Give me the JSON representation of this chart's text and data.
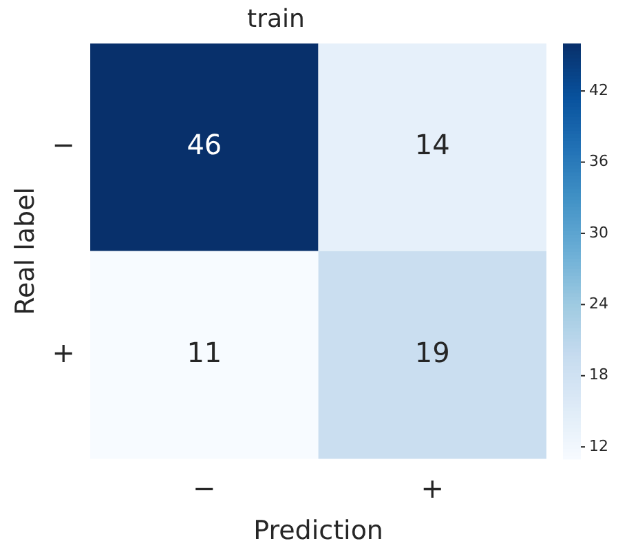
{
  "chart_data": {
    "type": "heatmap",
    "title": "train",
    "xlabel": "Prediction",
    "ylabel": "Real label",
    "categories": [
      "−",
      "+"
    ],
    "y_categories": [
      "−",
      "+"
    ],
    "cells": [
      [
        46,
        14
      ],
      [
        11,
        19
      ]
    ],
    "data_labels": true,
    "clim": [
      11,
      46
    ],
    "cticks": [
      12,
      18,
      24,
      30,
      36,
      42
    ]
  }
}
